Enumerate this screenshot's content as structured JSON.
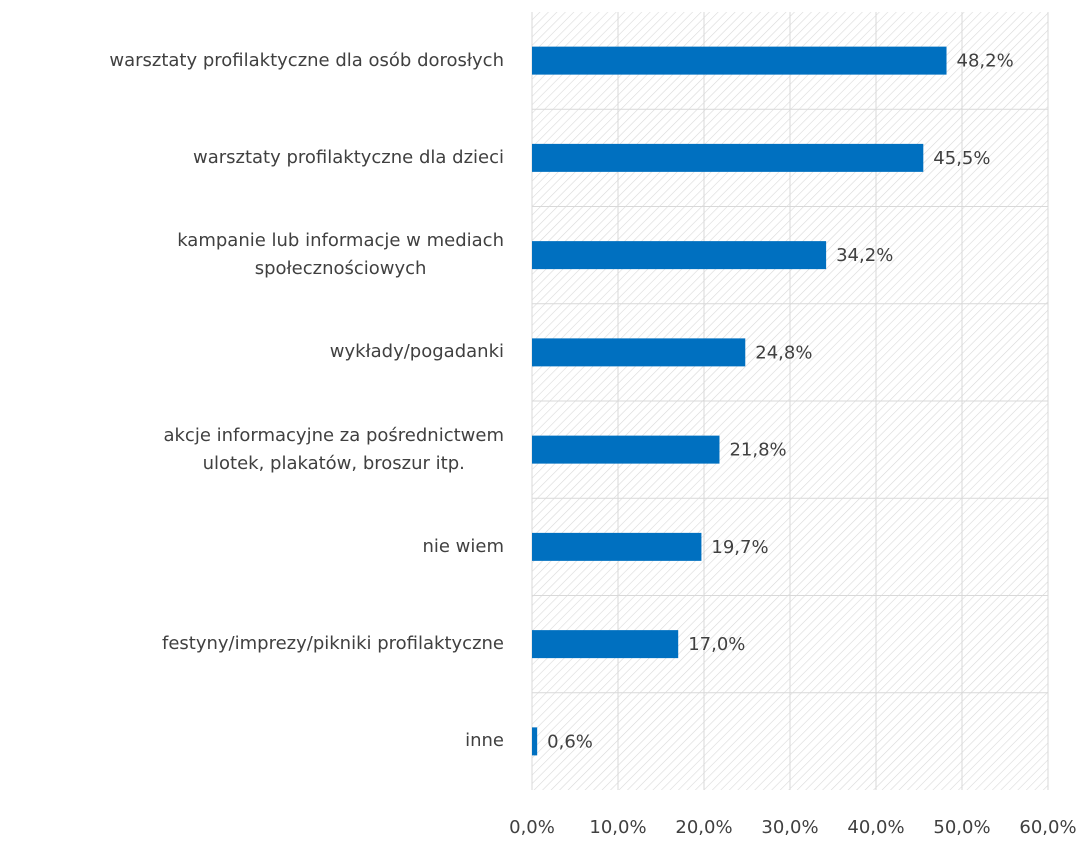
{
  "chart_data": {
    "type": "bar",
    "orientation": "horizontal",
    "categories": [
      "warsztaty profilaktyczne dla osób dorosłych",
      "warsztaty profilaktyczne dla dzieci",
      "kampanie lub informacje w mediach\nspołecznościowych",
      "wykłady/pogadanki",
      "akcje informacyjne za pośrednictwem\nulotek, plakatów, broszur itp.",
      "nie wiem",
      "festyny/imprezy/pikniki profilaktyczne",
      "inne"
    ],
    "values": [
      48.2,
      45.5,
      34.2,
      24.8,
      21.8,
      19.7,
      17.0,
      0.6
    ],
    "value_labels": [
      "48,2%",
      "45,5%",
      "34,2%",
      "24,8%",
      "21,8%",
      "19,7%",
      "17,0%",
      "0,6%"
    ],
    "color": "#0070c0",
    "xlim": [
      0,
      60
    ],
    "xticks": [
      {
        "value": 0,
        "label": "0,0%"
      },
      {
        "value": 10,
        "label": "10,0%"
      },
      {
        "value": 20,
        "label": "20,0%"
      },
      {
        "value": 30,
        "label": "30,0%"
      },
      {
        "value": 40,
        "label": "40,0%"
      },
      {
        "value": 50,
        "label": "50,0%"
      },
      {
        "value": 60,
        "label": "60,0%"
      }
    ],
    "grid": true
  }
}
